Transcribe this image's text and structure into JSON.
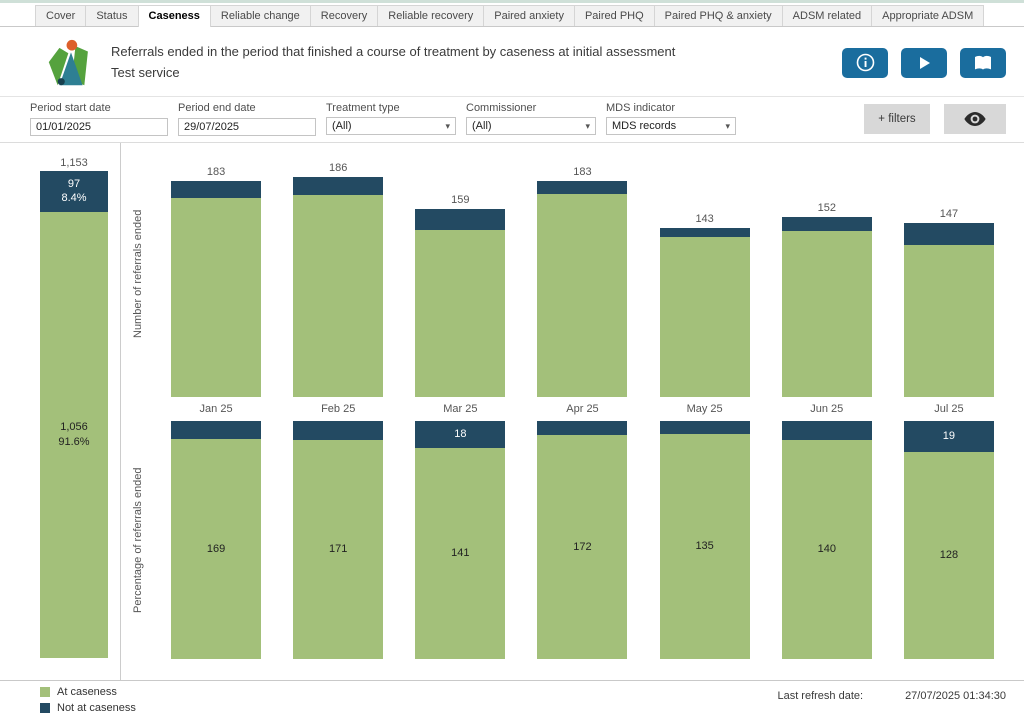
{
  "tabs": {
    "active_index": 2,
    "items": [
      {
        "label": "Cover"
      },
      {
        "label": "Status"
      },
      {
        "label": "Caseness"
      },
      {
        "label": "Reliable change"
      },
      {
        "label": "Recovery"
      },
      {
        "label": "Reliable recovery"
      },
      {
        "label": "Paired anxiety"
      },
      {
        "label": "Paired PHQ"
      },
      {
        "label": "Paired PHQ & anxiety"
      },
      {
        "label": "ADSM related"
      },
      {
        "label": "Appropriate ADSM"
      }
    ]
  },
  "header": {
    "title": "Referrals ended in the period that finished a course of treatment by caseness at initial assessment",
    "subtitle": "Test service"
  },
  "icons": {
    "info": "info-icon",
    "play": "play-icon",
    "book": "open-book-icon",
    "eye": "eye-icon",
    "caret_glyph": "▾"
  },
  "filters": {
    "period_start": {
      "label": "Period start date",
      "value": "01/01/2025"
    },
    "period_end": {
      "label": "Period end date",
      "value": "29/07/2025"
    },
    "treatment_type": {
      "label": "Treatment type",
      "value": "(All)"
    },
    "commissioner": {
      "label": "Commissioner",
      "value": "(All)"
    },
    "mds_indicator": {
      "label": "MDS indicator",
      "value": "MDS records"
    },
    "more_filters_label": "+ filters"
  },
  "colors": {
    "at_caseness": "#a3c07a",
    "not_at_caseness": "#234a62",
    "accent_button": "#1a6d9e"
  },
  "chart_data": [
    {
      "type": "bar",
      "subtype": "stacked-total",
      "title": "Total referrals ended",
      "total_label": "1,153",
      "segments": [
        {
          "name": "Not at caseness",
          "value": 97,
          "label_lines": [
            "97",
            "8.4%"
          ]
        },
        {
          "name": "At caseness",
          "value": 1056,
          "label_lines": [
            "1,056",
            "91.6%"
          ]
        }
      ]
    },
    {
      "type": "bar",
      "subtype": "stacked",
      "ylabel": "Number of referrals ended",
      "categories": [
        "Jan 25",
        "Feb 25",
        "Mar 25",
        "Apr 25",
        "May 25",
        "Jun 25",
        "Jul 25"
      ],
      "series": [
        {
          "name": "At caseness",
          "values": [
            169,
            171,
            141,
            172,
            135,
            140,
            128
          ]
        },
        {
          "name": "Not at caseness",
          "values": [
            14,
            15,
            18,
            11,
            8,
            12,
            19
          ]
        }
      ],
      "totals": [
        183,
        186,
        159,
        183,
        143,
        152,
        147
      ],
      "ylim": [
        0,
        186
      ],
      "grid": false,
      "legend_position": "bottom-left"
    },
    {
      "type": "bar",
      "subtype": "stacked-100pct",
      "ylabel": "Percentage of referrals ended",
      "categories": [
        "Jan 25",
        "Feb 25",
        "Mar 25",
        "Apr 25",
        "May 25",
        "Jun 25",
        "Jul 25"
      ],
      "series": [
        {
          "name": "At caseness",
          "values": [
            169,
            171,
            141,
            172,
            135,
            140,
            128
          ],
          "labels": [
            "169",
            "171",
            "141",
            "172",
            "135",
            "140",
            "128"
          ]
        },
        {
          "name": "Not at caseness",
          "values": [
            14,
            15,
            18,
            11,
            8,
            12,
            19
          ],
          "labels": [
            "",
            "",
            "18",
            "",
            "",
            "",
            "19"
          ]
        }
      ]
    }
  ],
  "legend": {
    "items": [
      {
        "label": "At caseness",
        "color": "#a3c07a"
      },
      {
        "label": "Not at caseness",
        "color": "#234a62"
      }
    ]
  },
  "footer": {
    "refresh_label": "Last refresh date:",
    "refresh_value": "27/07/2025 01:34:30"
  }
}
